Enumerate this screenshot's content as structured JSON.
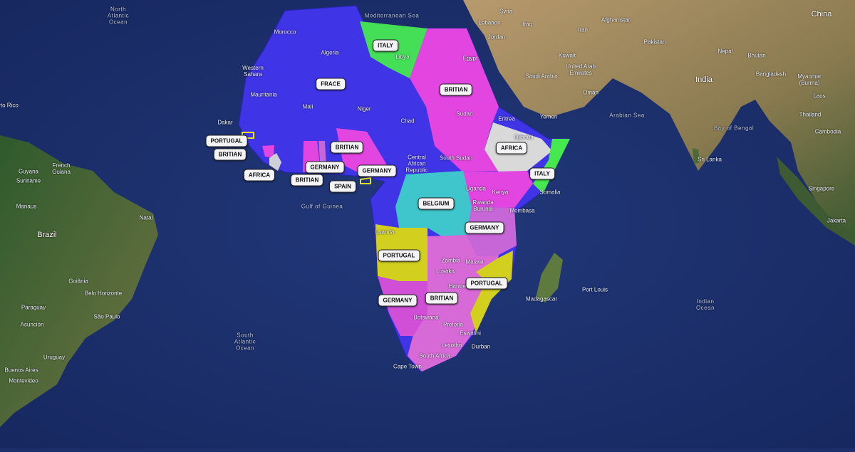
{
  "colors": {
    "ocean": "#1d2f6b",
    "france": "#3f34e6",
    "britain": "#e245e0",
    "britain_south": "#d86ad8",
    "italy": "#46e84f",
    "germany": "#c766d6",
    "germany_west": "#d04fd6",
    "portugal": "#d2cf1e",
    "belgium": "#3fc5cc",
    "africa_independent": "#d9d9d9",
    "desert": "#c9a26a",
    "forest": "#3c5a34"
  },
  "colony_labels": [
    {
      "text": "ITALY",
      "colony": "italy-libya"
    },
    {
      "text": "FRACE",
      "colony": "france-west-africa"
    },
    {
      "text": "BRITIAN",
      "colony": "britain-egypt-sudan"
    },
    {
      "text": "PORTUGAL",
      "colony": "portugal-guinea"
    },
    {
      "text": "BRITIAN",
      "colony": "britain-sierra-leone"
    },
    {
      "text": "AFRICA",
      "colony": "liberia"
    },
    {
      "text": "BRITIAN",
      "colony": "britain-nigeria"
    },
    {
      "text": "GERMANY",
      "colony": "germany-togo"
    },
    {
      "text": "BRITIAN",
      "colony": "britain-gold-coast"
    },
    {
      "text": "GERMANY",
      "colony": "germany-cameroon"
    },
    {
      "text": "SPAIN",
      "colony": "spain-guinea"
    },
    {
      "text": "BELGIUM",
      "colony": "belgium-congo"
    },
    {
      "text": "AFRICA",
      "colony": "ethiopia"
    },
    {
      "text": "ITALY",
      "colony": "italy-somalia"
    },
    {
      "text": "GERMANY",
      "colony": "germany-east-africa"
    },
    {
      "text": "PORTUGAL",
      "colony": "portugal-angola"
    },
    {
      "text": "PORTUGAL",
      "colony": "portugal-mozambique"
    },
    {
      "text": "GERMANY",
      "colony": "germany-southwest-africa"
    },
    {
      "text": "BRITIAN",
      "colony": "britain-south-africa"
    }
  ],
  "place_labels": [
    {
      "text": "North\nAtlantic\nOcean",
      "kind": "ocean"
    },
    {
      "text": "South\nAtlantic\nOcean",
      "kind": "ocean"
    },
    {
      "text": "Indian\nOcean",
      "kind": "ocean"
    },
    {
      "text": "Arabian Sea",
      "kind": "ocean"
    },
    {
      "text": "Bay of Bengal",
      "kind": "ocean"
    },
    {
      "text": "Mediterranean Sea",
      "kind": "ocean"
    },
    {
      "text": "Gulf of Guinea",
      "kind": "ocean"
    },
    {
      "text": "Morocco",
      "kind": "country"
    },
    {
      "text": "Algeria",
      "kind": "country"
    },
    {
      "text": "Western\nSahara",
      "kind": "country"
    },
    {
      "text": "Mauritania",
      "kind": "country"
    },
    {
      "text": "Mali",
      "kind": "country"
    },
    {
      "text": "Niger",
      "kind": "country"
    },
    {
      "text": "Chad",
      "kind": "country"
    },
    {
      "text": "Libya",
      "kind": "country"
    },
    {
      "text": "Egypt",
      "kind": "country"
    },
    {
      "text": "Sudan",
      "kind": "country"
    },
    {
      "text": "South Sudan",
      "kind": "country"
    },
    {
      "text": "Central\nAfrican\nRepublic",
      "kind": "country"
    },
    {
      "text": "Eritrea",
      "kind": "country"
    },
    {
      "text": "Djibouti",
      "kind": "country"
    },
    {
      "text": "Somalia",
      "kind": "country"
    },
    {
      "text": "Uganda",
      "kind": "country"
    },
    {
      "text": "Kenya",
      "kind": "country"
    },
    {
      "text": "Rwanda\nBurundi",
      "kind": "country"
    },
    {
      "text": "Luanda",
      "kind": "city"
    },
    {
      "text": "Zambia",
      "kind": "country"
    },
    {
      "text": "Malawi",
      "kind": "country"
    },
    {
      "text": "Lusaka",
      "kind": "city"
    },
    {
      "text": "Harare",
      "kind": "city"
    },
    {
      "text": "Botswana",
      "kind": "country"
    },
    {
      "text": "Pretoria",
      "kind": "city"
    },
    {
      "text": "Eswatini",
      "kind": "country"
    },
    {
      "text": "Lesotho",
      "kind": "country"
    },
    {
      "text": "Durban",
      "kind": "city"
    },
    {
      "text": "South Africa",
      "kind": "country"
    },
    {
      "text": "Cape Town",
      "kind": "city"
    },
    {
      "text": "Madagascar",
      "kind": "country"
    },
    {
      "text": "Port Louis",
      "kind": "city"
    },
    {
      "text": "Mombasa",
      "kind": "city"
    },
    {
      "text": "Dakar",
      "kind": "city"
    },
    {
      "text": "Saudi Arabia",
      "kind": "country"
    },
    {
      "text": "Yemen",
      "kind": "country"
    },
    {
      "text": "Oman",
      "kind": "country"
    },
    {
      "text": "United Arab\nEmirates",
      "kind": "country"
    },
    {
      "text": "Kuwait",
      "kind": "country"
    },
    {
      "text": "Iraq",
      "kind": "country"
    },
    {
      "text": "Iran",
      "kind": "country"
    },
    {
      "text": "Syria",
      "kind": "country"
    },
    {
      "text": "Lebanon",
      "kind": "country"
    },
    {
      "text": "Jordan",
      "kind": "country"
    },
    {
      "text": "Afghanistan",
      "kind": "country"
    },
    {
      "text": "Pakistan",
      "kind": "country"
    },
    {
      "text": "India",
      "kind": "big"
    },
    {
      "text": "Nepal",
      "kind": "country"
    },
    {
      "text": "Bhutan",
      "kind": "country"
    },
    {
      "text": "Bangladesh",
      "kind": "country"
    },
    {
      "text": "Myanmar\n(Burma)",
      "kind": "country"
    },
    {
      "text": "Thailand",
      "kind": "country"
    },
    {
      "text": "Laos",
      "kind": "country"
    },
    {
      "text": "Cambodia",
      "kind": "country"
    },
    {
      "text": "China",
      "kind": "big"
    },
    {
      "text": "Sri Lanka",
      "kind": "country"
    },
    {
      "text": "Singapore",
      "kind": "city"
    },
    {
      "text": "Jakarta",
      "kind": "city"
    },
    {
      "text": "Brazil",
      "kind": "big"
    },
    {
      "text": "Guyana",
      "kind": "country"
    },
    {
      "text": "Suriname",
      "kind": "country"
    },
    {
      "text": "French\nGuiana",
      "kind": "country"
    },
    {
      "text": "Paraguay",
      "kind": "country"
    },
    {
      "text": "Uruguay",
      "kind": "country"
    },
    {
      "text": "Buenos Aires",
      "kind": "city"
    },
    {
      "text": "Montevideo",
      "kind": "city"
    },
    {
      "text": "Manaus",
      "kind": "city"
    },
    {
      "text": "Natal",
      "kind": "city"
    },
    {
      "text": "Belo Horizonte",
      "kind": "city"
    },
    {
      "text": "São Paulo",
      "kind": "city"
    },
    {
      "text": "Goiânia",
      "kind": "city"
    },
    {
      "text": "Asunción",
      "kind": "city"
    },
    {
      "text": "rto Rico",
      "kind": "country"
    }
  ]
}
